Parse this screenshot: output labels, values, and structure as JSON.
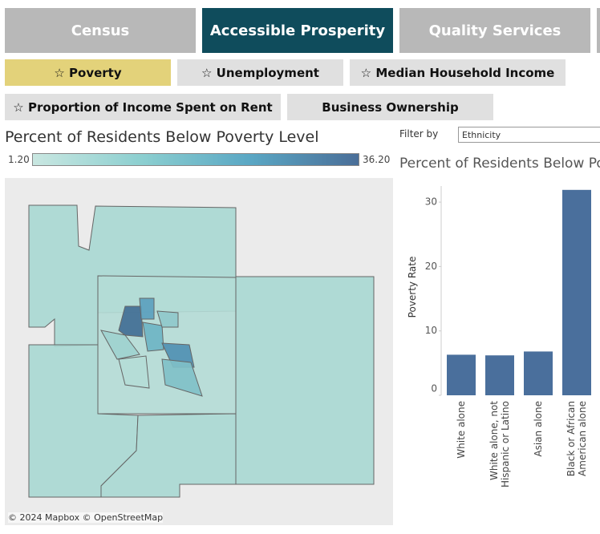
{
  "tabs": [
    "Census",
    "Accessible Prosperity",
    "Quality Services"
  ],
  "subtabs": [
    "☆ Poverty",
    "☆ Unemployment",
    "☆ Median Household Income",
    "☆ Proportion of Income Spent on Rent",
    "Business Ownership"
  ],
  "map": {
    "title": "Percent of Residents Below Poverty Level",
    "legend": [
      {
        "value": 1.2,
        "label": "1.20"
      },
      {
        "value": 36.2,
        "label": "36.20"
      }
    ],
    "attribution": "© 2024 Mapbox  © OpenStreetMap"
  },
  "filter": {
    "label": "Filter by",
    "value": "Ethnicity"
  },
  "chart": {
    "type": "bar",
    "title": "Percent of Residents Below Poverty Level",
    "y_label": "Poverty Rate",
    "categories": [
      "White alone",
      "White alone, not Hispanic or Latino",
      "Asian alone",
      "Black or African American alone"
    ],
    "values": [
      6.3,
      6.2,
      6.8,
      31.9
    ],
    "color": "#4a6f9c",
    "ylim": [
      0,
      32.5
    ],
    "yticks": [
      0,
      10,
      20,
      30
    ]
  }
}
